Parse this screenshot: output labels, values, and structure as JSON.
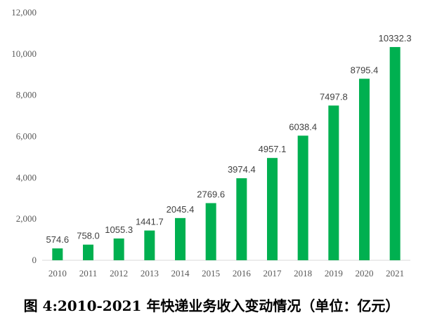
{
  "chart_data": {
    "type": "bar",
    "categories": [
      "2010",
      "2011",
      "2012",
      "2013",
      "2014",
      "2015",
      "2016",
      "2017",
      "2018",
      "2019",
      "2020",
      "2021"
    ],
    "values": [
      574.6,
      758.0,
      1055.3,
      1441.7,
      2045.4,
      2769.6,
      3974.4,
      4957.1,
      6038.4,
      7497.8,
      8795.4,
      10332.3
    ],
    "value_labels": [
      "574.6",
      "758.0",
      "1055.3",
      "1441.7",
      "2045.4",
      "2769.6",
      "3974.4",
      "4957.1",
      "6038.4",
      "7497.8",
      "8795.4",
      "10332.3"
    ],
    "ylim": [
      0,
      12000
    ],
    "yticks": [
      0,
      2000,
      4000,
      6000,
      8000,
      10000,
      12000
    ],
    "ytick_labels": [
      "0",
      "2,000",
      "4,000",
      "6,000",
      "8,000",
      "10,000",
      "12,000"
    ],
    "bar_color": "#00B050",
    "grid": false,
    "title": "",
    "xlabel": "",
    "ylabel": ""
  },
  "caption": "图 4:2010-2021 年快递业务收入变动情况（单位：亿元）"
}
